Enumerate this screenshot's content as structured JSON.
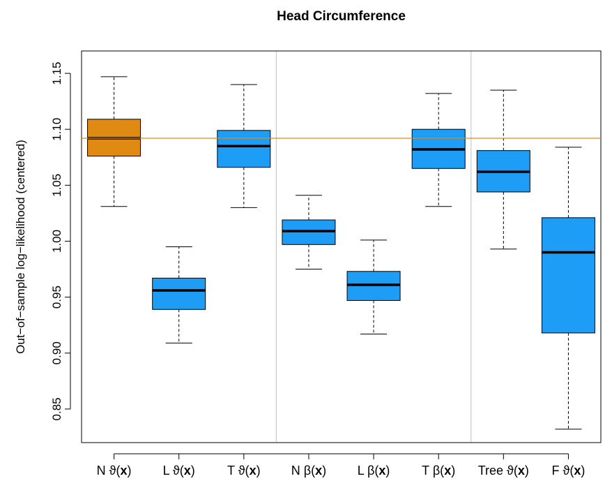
{
  "chart_data": {
    "type": "box",
    "title": "Head Circumference",
    "xlabel": "",
    "ylabel": "Out−of−sample log−likelihood (centered)",
    "ylim": [
      0.82,
      1.17
    ],
    "yticks": [
      0.85,
      0.9,
      0.95,
      1.0,
      1.05,
      1.1,
      1.15
    ],
    "ytick_labels": [
      "0.85",
      "0.90",
      "0.95",
      "1.00",
      "1.05",
      "1.10",
      "1.15"
    ],
    "categories": [
      {
        "prefix": "N ",
        "symbol": "ϑ",
        "arg": "x"
      },
      {
        "prefix": "L ",
        "symbol": "ϑ",
        "arg": "x"
      },
      {
        "prefix": "T ",
        "symbol": "ϑ",
        "arg": "x"
      },
      {
        "prefix": "N ",
        "symbol": "β",
        "arg": "x"
      },
      {
        "prefix": "L ",
        "symbol": "β",
        "arg": "x"
      },
      {
        "prefix": "T ",
        "symbol": "β",
        "arg": "x"
      },
      {
        "prefix": "Tree ",
        "symbol": "ϑ",
        "arg": "x"
      },
      {
        "prefix": "F ",
        "symbol": "ϑ",
        "arg": "x"
      }
    ],
    "boxes": [
      {
        "min": 1.031,
        "q1": 1.076,
        "median": 1.092,
        "q3": 1.109,
        "max": 1.147,
        "color": "#E08A14"
      },
      {
        "min": 0.909,
        "q1": 0.939,
        "median": 0.956,
        "q3": 0.967,
        "max": 0.995,
        "color": "#1E9DF7"
      },
      {
        "min": 1.03,
        "q1": 1.066,
        "median": 1.085,
        "q3": 1.099,
        "max": 1.14,
        "color": "#1E9DF7"
      },
      {
        "min": 0.975,
        "q1": 0.997,
        "median": 1.009,
        "q3": 1.019,
        "max": 1.041,
        "color": "#1E9DF7"
      },
      {
        "min": 0.917,
        "q1": 0.947,
        "median": 0.961,
        "q3": 0.973,
        "max": 1.001,
        "color": "#1E9DF7"
      },
      {
        "min": 1.031,
        "q1": 1.065,
        "median": 1.082,
        "q3": 1.1,
        "max": 1.132,
        "color": "#1E9DF7"
      },
      {
        "min": 0.993,
        "q1": 1.044,
        "median": 1.062,
        "q3": 1.081,
        "max": 1.135,
        "color": "#1E9DF7"
      },
      {
        "min": 0.832,
        "q1": 0.918,
        "median": 0.99,
        "q3": 1.021,
        "max": 1.084,
        "color": "#1E9DF7"
      }
    ],
    "reference_line": {
      "y": 1.092,
      "color": "#E08A14"
    },
    "group_separators_after": [
      3,
      6
    ],
    "separator_color": "#cccccc",
    "grid": false,
    "legend": "none"
  }
}
